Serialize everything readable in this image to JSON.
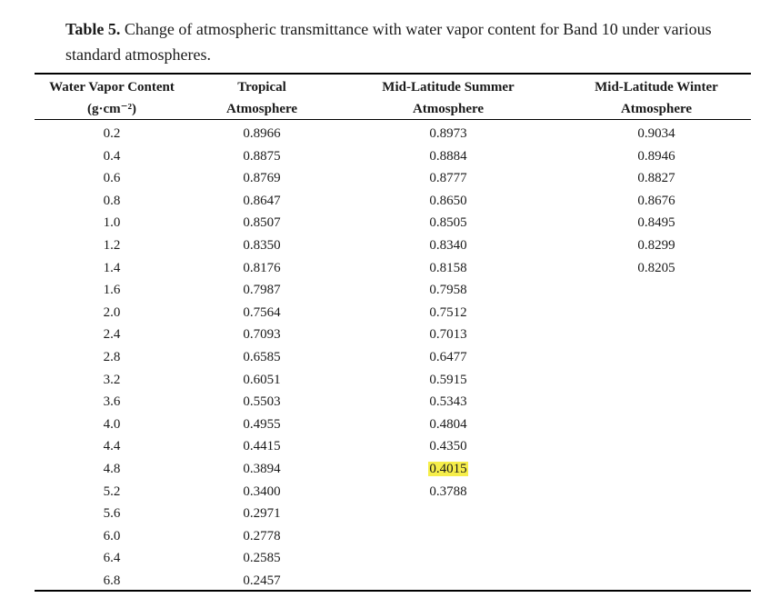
{
  "caption": {
    "label": "Table 5.",
    "text": " Change of atmospheric transmittance with water vapor content for Band 10 under various standard atmospheres."
  },
  "table": {
    "headers": [
      {
        "line1": "Water Vapor Content",
        "line2": "(g·cm⁻²)"
      },
      {
        "line1": "Tropical",
        "line2": "Atmosphere"
      },
      {
        "line1": "Mid-Latitude Summer",
        "line2": "Atmosphere"
      },
      {
        "line1": "Mid-Latitude Winter",
        "line2": "Atmosphere"
      }
    ],
    "rows": [
      [
        "0.2",
        "0.8966",
        "0.8973",
        "0.9034"
      ],
      [
        "0.4",
        "0.8875",
        "0.8884",
        "0.8946"
      ],
      [
        "0.6",
        "0.8769",
        "0.8777",
        "0.8827"
      ],
      [
        "0.8",
        "0.8647",
        "0.8650",
        "0.8676"
      ],
      [
        "1.0",
        "0.8507",
        "0.8505",
        "0.8495"
      ],
      [
        "1.2",
        "0.8350",
        "0.8340",
        "0.8299"
      ],
      [
        "1.4",
        "0.8176",
        "0.8158",
        "0.8205"
      ],
      [
        "1.6",
        "0.7987",
        "0.7958",
        ""
      ],
      [
        "2.0",
        "0.7564",
        "0.7512",
        ""
      ],
      [
        "2.4",
        "0.7093",
        "0.7013",
        ""
      ],
      [
        "2.8",
        "0.6585",
        "0.6477",
        ""
      ],
      [
        "3.2",
        "0.6051",
        "0.5915",
        ""
      ],
      [
        "3.6",
        "0.5503",
        "0.5343",
        ""
      ],
      [
        "4.0",
        "0.4955",
        "0.4804",
        ""
      ],
      [
        "4.4",
        "0.4415",
        "0.4350",
        ""
      ],
      [
        "4.8",
        "0.3894",
        "0.4015",
        ""
      ],
      [
        "5.2",
        "0.3400",
        "0.3788",
        ""
      ],
      [
        "5.6",
        "0.2971",
        "",
        ""
      ],
      [
        "6.0",
        "0.2778",
        "",
        ""
      ],
      [
        "6.4",
        "0.2585",
        "",
        ""
      ],
      [
        "6.8",
        "0.2457",
        "",
        ""
      ]
    ],
    "highlight": {
      "row": 15,
      "col": 2,
      "color": "#f6ee4a"
    }
  }
}
